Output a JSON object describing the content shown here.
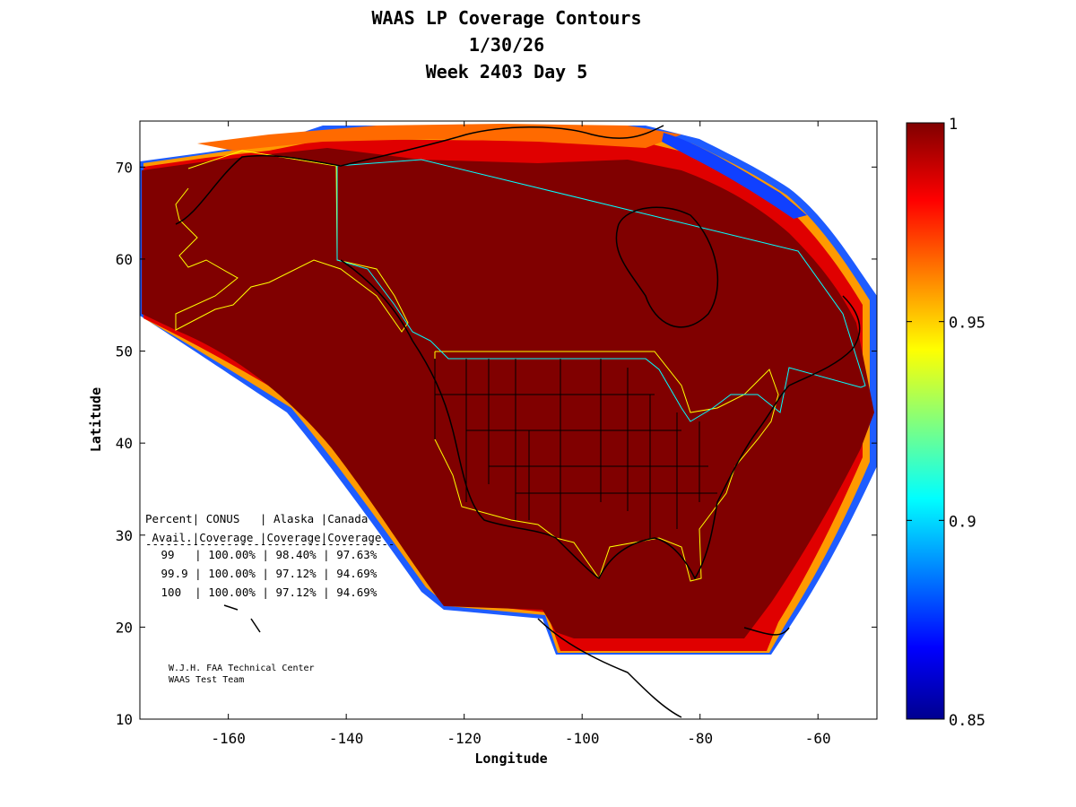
{
  "title": {
    "line1": "WAAS LP Coverage Contours",
    "line2": "1/30/26",
    "line3": "Week 2403 Day 5"
  },
  "axes": {
    "xlabel": "Longitude",
    "ylabel": "Latitude",
    "xlim": [
      -175,
      -50
    ],
    "ylim": [
      10,
      75
    ],
    "xticks": [
      "-160",
      "-140",
      "-120",
      "-100",
      "-80",
      "-60"
    ],
    "xtick_values": [
      -160,
      -140,
      -120,
      -100,
      -80,
      -60
    ],
    "yticks": [
      "10",
      "20",
      "30",
      "40",
      "50",
      "60",
      "70"
    ],
    "ytick_values": [
      10,
      20,
      30,
      40,
      50,
      60,
      70
    ]
  },
  "colorbar": {
    "ticks": [
      "1",
      "0.95",
      "0.9",
      "0.85"
    ],
    "tick_values": [
      1,
      0.95,
      0.9,
      0.85
    ],
    "range": [
      0.85,
      1
    ],
    "colormap": "jet"
  },
  "coverage_table": {
    "header1": "Percent| CONUS   | Alaska |Canada",
    "header2": " Avail.|Coverage |Coverage|Coverage",
    "divider": "-------------------------------------",
    "rows": [
      " 99   | 100.00% | 98.40% | 97.63%",
      " 99.9 | 100.00% | 97.12% | 94.69%",
      " 100  | 100.00% | 97.12% | 94.69%"
    ]
  },
  "credit": {
    "line1": "W.J.H. FAA Technical Center",
    "line2": "WAAS Test Team"
  },
  "colors": {
    "coverage_full": "#800000",
    "conus_outline": "#ffff00",
    "canada_outline": "#00ffff",
    "coastline": "#000000"
  }
}
